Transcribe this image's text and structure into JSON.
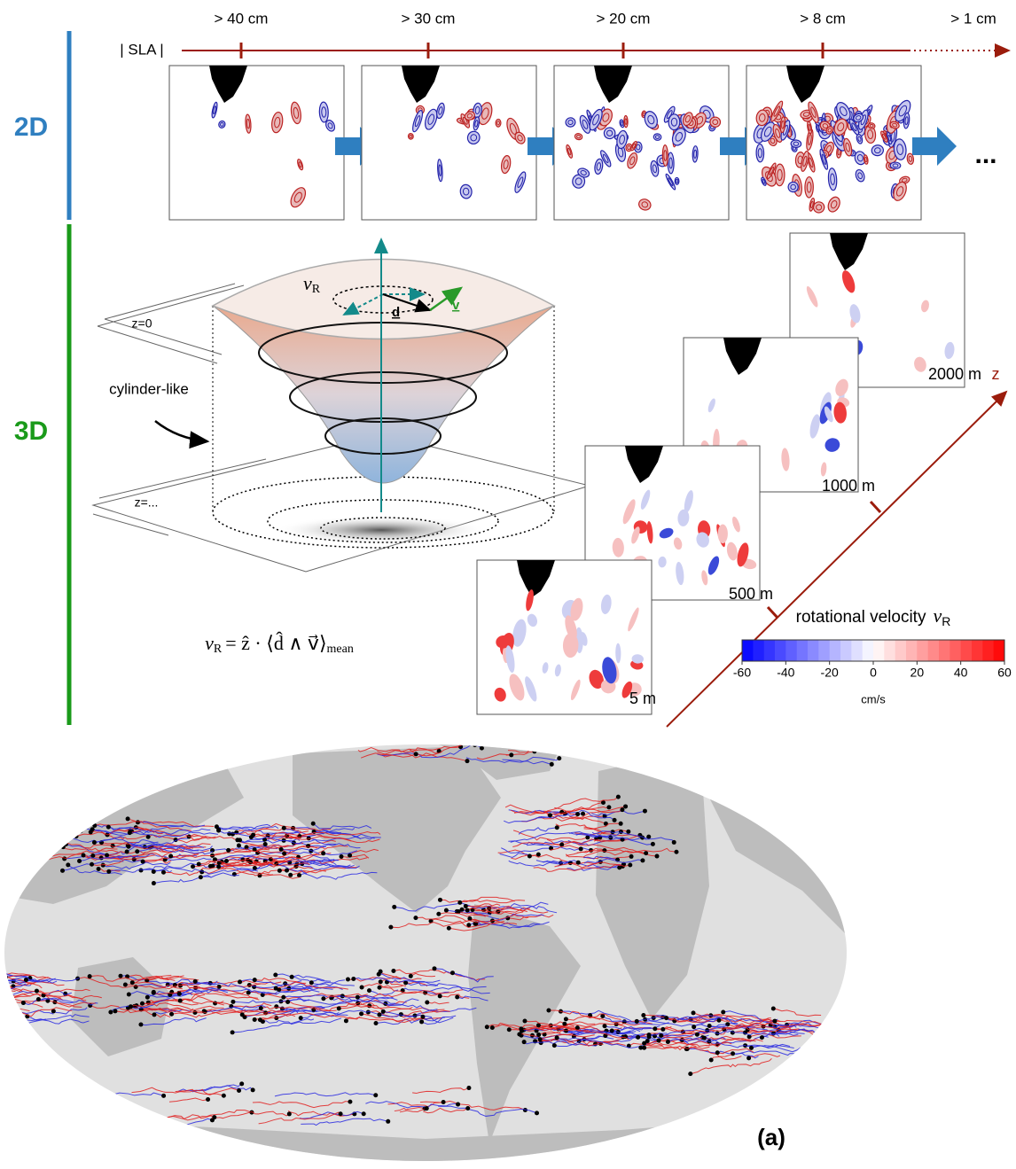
{
  "sections": {
    "top": "2D",
    "bottom": "3D"
  },
  "sla_axis": {
    "label": "| SLA |",
    "thresholds": [
      "> 40 cm",
      "> 30 cm",
      "> 20 cm",
      "> 8 cm",
      "> 1 cm"
    ],
    "more": "..."
  },
  "cone": {
    "top_label": "z=0",
    "bottom_label": "z=...",
    "shape_label": "cylinder-like",
    "radius_symbol": "v",
    "radius_sub": "R",
    "d_vector": "d",
    "v_vector": "v"
  },
  "formula": {
    "lhs": "v",
    "lhs_sub": "R",
    "rhs": "= ẑ · ⟨d̂ ∧ v⃗⟩",
    "rhs_sub": "mean"
  },
  "depth_panels": {
    "labels": [
      "5 m",
      "500 m",
      "1000 m",
      "2000 m"
    ],
    "axis_label": "z"
  },
  "colorbar": {
    "title": "rotational velocity",
    "symbol": "v",
    "symbol_sub": "R",
    "ticks": [
      -60,
      -40,
      -20,
      0,
      20,
      40,
      60
    ],
    "unit": "cm/s"
  },
  "panel_label": "(a)"
}
